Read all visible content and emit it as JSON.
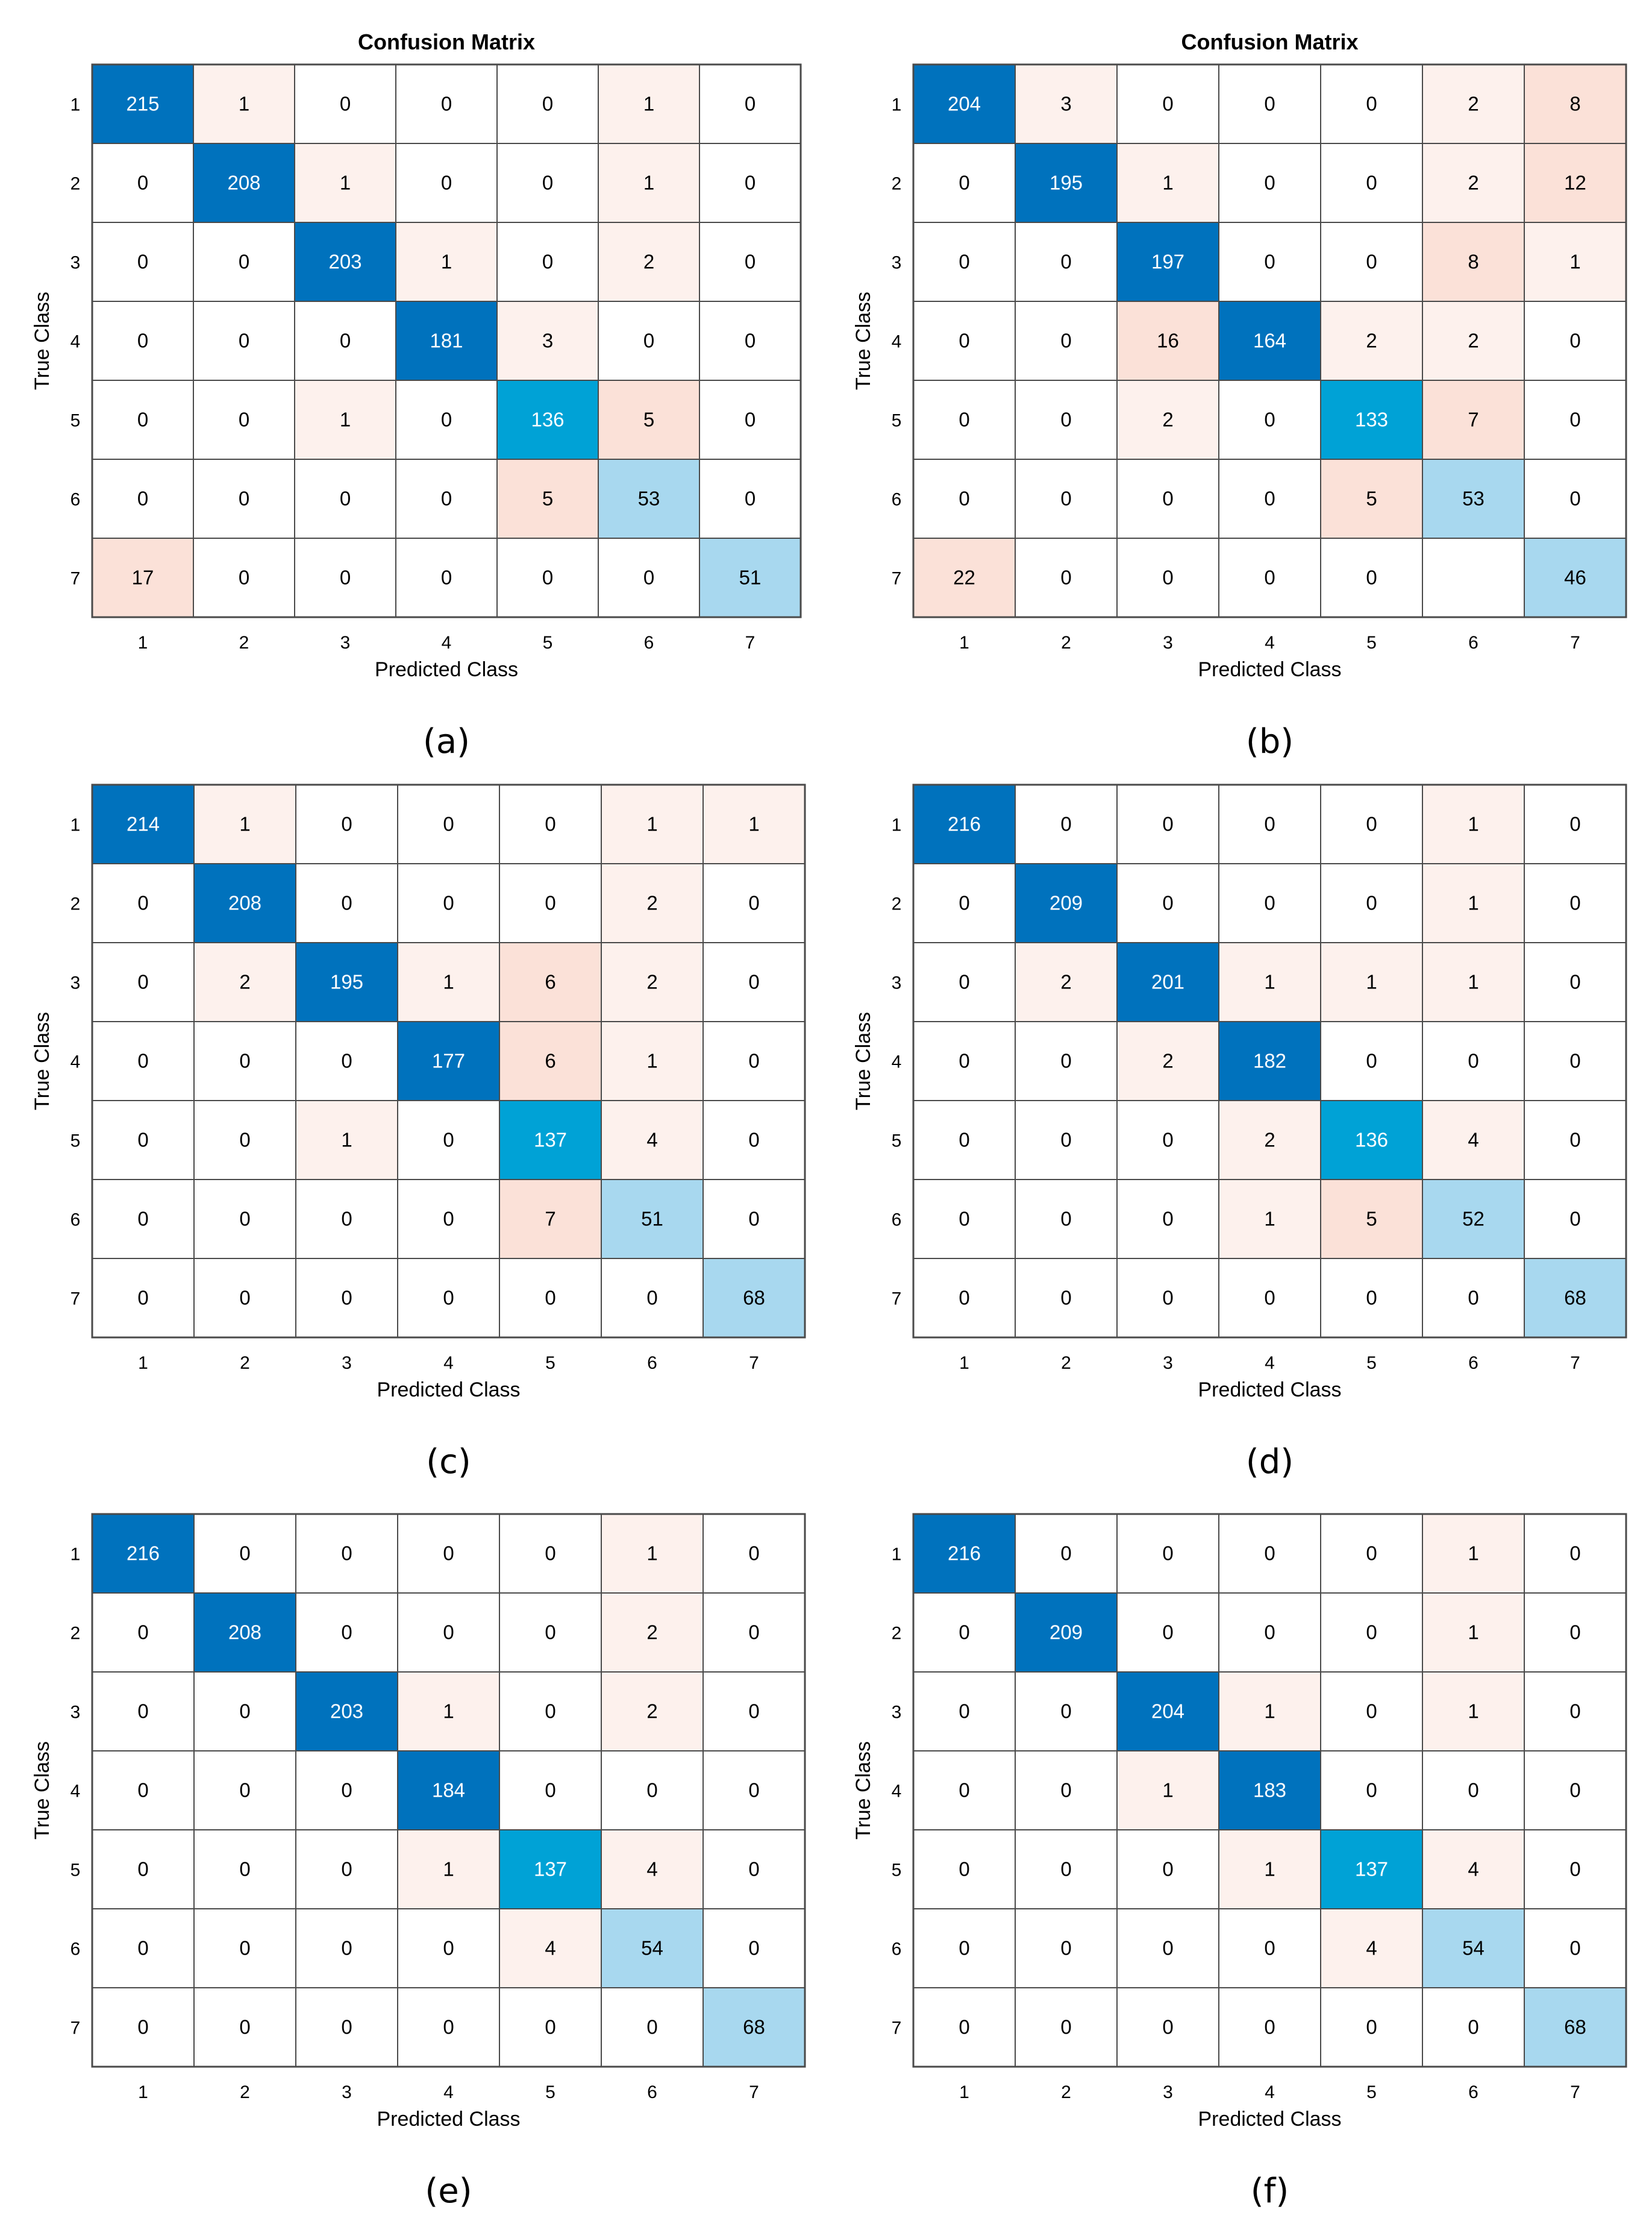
{
  "chart_data": [
    {
      "type": "heatmap",
      "title": "Confusion Matrix",
      "xlabel": "Predicted Class",
      "ylabel": "True Class",
      "caption": "(a)",
      "x_categories": [
        "1",
        "2",
        "3",
        "4",
        "5",
        "6",
        "7"
      ],
      "y_categories": [
        "1",
        "2",
        "3",
        "4",
        "5",
        "6",
        "7"
      ],
      "values": [
        [
          215,
          1,
          0,
          0,
          0,
          1,
          0
        ],
        [
          0,
          208,
          1,
          0,
          0,
          1,
          0
        ],
        [
          0,
          0,
          203,
          1,
          0,
          2,
          0
        ],
        [
          0,
          0,
          0,
          181,
          3,
          0,
          0
        ],
        [
          0,
          0,
          1,
          0,
          136,
          5,
          0
        ],
        [
          0,
          0,
          0,
          0,
          5,
          53,
          0
        ],
        [
          17,
          0,
          0,
          0,
          0,
          0,
          51
        ]
      ]
    },
    {
      "type": "heatmap",
      "title": "Confusion Matrix",
      "xlabel": "Predicted Class",
      "ylabel": "True Class",
      "caption": "(b)",
      "x_categories": [
        "1",
        "2",
        "3",
        "4",
        "5",
        "6",
        "7"
      ],
      "y_categories": [
        "1",
        "2",
        "3",
        "4",
        "5",
        "6",
        "7"
      ],
      "values": [
        [
          204,
          3,
          0,
          0,
          0,
          2,
          8
        ],
        [
          0,
          195,
          1,
          0,
          0,
          2,
          12
        ],
        [
          0,
          0,
          197,
          0,
          0,
          8,
          1
        ],
        [
          0,
          0,
          16,
          164,
          2,
          2,
          0
        ],
        [
          0,
          0,
          2,
          0,
          133,
          7,
          0
        ],
        [
          0,
          0,
          0,
          0,
          5,
          53,
          0
        ],
        [
          22,
          0,
          0,
          0,
          0,
          null,
          46
        ]
      ]
    },
    {
      "type": "heatmap",
      "title": "",
      "xlabel": "Predicted Class",
      "ylabel": "True Class",
      "caption": "(c)",
      "x_categories": [
        "1",
        "2",
        "3",
        "4",
        "5",
        "6",
        "7"
      ],
      "y_categories": [
        "1",
        "2",
        "3",
        "4",
        "5",
        "6",
        "7"
      ],
      "values": [
        [
          214,
          1,
          0,
          0,
          0,
          1,
          1
        ],
        [
          0,
          208,
          0,
          0,
          0,
          2,
          0
        ],
        [
          0,
          2,
          195,
          1,
          6,
          2,
          0
        ],
        [
          0,
          0,
          0,
          177,
          6,
          1,
          0
        ],
        [
          0,
          0,
          1,
          0,
          137,
          4,
          0
        ],
        [
          0,
          0,
          0,
          0,
          7,
          51,
          0
        ],
        [
          0,
          0,
          0,
          0,
          0,
          0,
          68
        ]
      ]
    },
    {
      "type": "heatmap",
      "title": "",
      "xlabel": "Predicted Class",
      "ylabel": "True Class",
      "caption": "(d)",
      "x_categories": [
        "1",
        "2",
        "3",
        "4",
        "5",
        "6",
        "7"
      ],
      "y_categories": [
        "1",
        "2",
        "3",
        "4",
        "5",
        "6",
        "7"
      ],
      "values": [
        [
          216,
          0,
          0,
          0,
          0,
          1,
          0
        ],
        [
          0,
          209,
          0,
          0,
          0,
          1,
          0
        ],
        [
          0,
          2,
          201,
          1,
          1,
          1,
          0
        ],
        [
          0,
          0,
          2,
          182,
          0,
          0,
          0
        ],
        [
          0,
          0,
          0,
          2,
          136,
          4,
          0
        ],
        [
          0,
          0,
          0,
          1,
          5,
          52,
          0
        ],
        [
          0,
          0,
          0,
          0,
          0,
          0,
          68
        ]
      ]
    },
    {
      "type": "heatmap",
      "title": "",
      "xlabel": "Predicted Class",
      "ylabel": "True Class",
      "caption": "(e)",
      "x_categories": [
        "1",
        "2",
        "3",
        "4",
        "5",
        "6",
        "7"
      ],
      "y_categories": [
        "1",
        "2",
        "3",
        "4",
        "5",
        "6",
        "7"
      ],
      "values": [
        [
          216,
          0,
          0,
          0,
          0,
          1,
          0
        ],
        [
          0,
          208,
          0,
          0,
          0,
          2,
          0
        ],
        [
          0,
          0,
          203,
          1,
          0,
          2,
          0
        ],
        [
          0,
          0,
          0,
          184,
          0,
          0,
          0
        ],
        [
          0,
          0,
          0,
          1,
          137,
          4,
          0
        ],
        [
          0,
          0,
          0,
          0,
          4,
          54,
          0
        ],
        [
          0,
          0,
          0,
          0,
          0,
          0,
          68
        ]
      ]
    },
    {
      "type": "heatmap",
      "title": "",
      "xlabel": "Predicted Class",
      "ylabel": "True Class",
      "caption": "(f)",
      "x_categories": [
        "1",
        "2",
        "3",
        "4",
        "5",
        "6",
        "7"
      ],
      "y_categories": [
        "1",
        "2",
        "3",
        "4",
        "5",
        "6",
        "7"
      ],
      "values": [
        [
          216,
          0,
          0,
          0,
          0,
          1,
          0
        ],
        [
          0,
          209,
          0,
          0,
          0,
          1,
          0
        ],
        [
          0,
          0,
          204,
          1,
          0,
          1,
          0
        ],
        [
          0,
          0,
          1,
          183,
          0,
          0,
          0
        ],
        [
          0,
          0,
          0,
          1,
          137,
          4,
          0
        ],
        [
          0,
          0,
          0,
          0,
          4,
          54,
          0
        ],
        [
          0,
          0,
          0,
          0,
          0,
          0,
          68
        ]
      ]
    }
  ],
  "colors": {
    "diag_strong": "#0072bd",
    "diag_mid": "#00a2d6",
    "diag_light": "#a8d8ef",
    "offdiag_strong": "#fbe1d8",
    "offdiag_light": "#fdf1ed",
    "cell_empty": "#ffffff",
    "grid": "#4a4a4a",
    "text_dark": "#000000",
    "text_light": "#ffffff"
  }
}
